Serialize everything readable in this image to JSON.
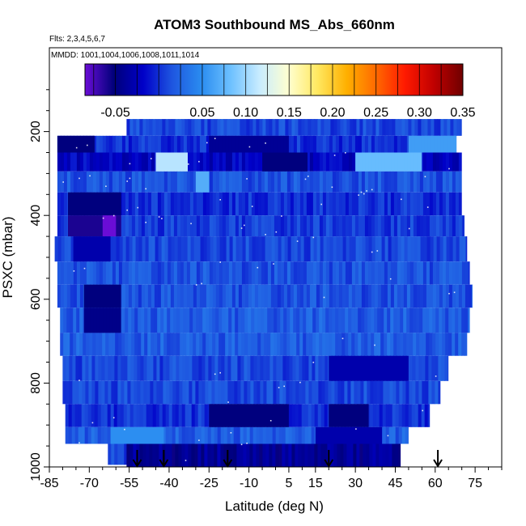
{
  "chart_data": {
    "type": "heatmap",
    "title": "ATOM3 Southbound MS_Abs_660nm",
    "flights_note": "Flts: 2,3,4,5,6,7",
    "dates_note": "MMDD: 1001,1004,1006,1008,1011,1014",
    "xlabel": "Latitude (deg N)",
    "ylabel": "PSXC (mbar)",
    "xlim": [
      -85,
      85
    ],
    "ylim": [
      1000,
      0
    ],
    "x_ticks": [
      -85,
      -70,
      -55,
      -40,
      -25,
      -10,
      5,
      15,
      30,
      45,
      60,
      75
    ],
    "y_ticks": [
      200,
      400,
      600,
      800,
      1000
    ],
    "colorbar": {
      "range": [
        -0.085,
        0.35
      ],
      "ticks": [
        -0.05,
        0.05,
        0.1,
        0.15,
        0.2,
        0.25,
        0.3,
        0.35
      ],
      "tick_labels": [
        "-0.05",
        "0.05",
        "0.10",
        "0.15",
        "0.20",
        "0.25",
        "0.30",
        "0.35"
      ],
      "colors": [
        "#6a0dd6",
        "#00007a",
        "#0000c8",
        "#1e56e0",
        "#2a8cf0",
        "#6cc0ff",
        "#c8ecff",
        "#ffffd0",
        "#ffe860",
        "#ffb000",
        "#ff6a00",
        "#ff1a00",
        "#c00000",
        "#700000"
      ]
    },
    "flight_markers_lat": [
      -52,
      -42,
      -18,
      20,
      61
    ],
    "bands": [
      {
        "p": [
          170,
          210
        ],
        "lat": [
          -56,
          70
        ],
        "value": 0.01
      },
      {
        "p": [
          210,
          250
        ],
        "lat": [
          -82,
          68
        ],
        "value": 0.0
      },
      {
        "p": [
          250,
          295
        ],
        "lat": [
          -82,
          70
        ],
        "value": -0.02
      },
      {
        "p": [
          295,
          345
        ],
        "lat": [
          -82,
          70
        ],
        "value": 0.015
      },
      {
        "p": [
          345,
          400
        ],
        "lat": [
          -82,
          70
        ],
        "value": 0.0
      },
      {
        "p": [
          400,
          450
        ],
        "lat": [
          -82,
          71
        ],
        "value": 0.005
      },
      {
        "p": [
          450,
          510
        ],
        "lat": [
          -83,
          72
        ],
        "value": 0.01
      },
      {
        "p": [
          510,
          565
        ],
        "lat": [
          -82,
          73
        ],
        "value": 0.015
      },
      {
        "p": [
          565,
          620
        ],
        "lat": [
          -82,
          74
        ],
        "value": 0.015
      },
      {
        "p": [
          620,
          680
        ],
        "lat": [
          -81,
          73
        ],
        "value": 0.02
      },
      {
        "p": [
          680,
          735
        ],
        "lat": [
          -81,
          72
        ],
        "value": 0.02
      },
      {
        "p": [
          735,
          795
        ],
        "lat": [
          -80,
          65
        ],
        "value": 0.01
      },
      {
        "p": [
          795,
          850
        ],
        "lat": [
          -80,
          62
        ],
        "value": 0.01
      },
      {
        "p": [
          850,
          905
        ],
        "lat": [
          -79,
          58
        ],
        "value": 0.0
      },
      {
        "p": [
          905,
          945
        ],
        "lat": [
          -79,
          50
        ],
        "value": 0.02
      },
      {
        "p": [
          945,
          995
        ],
        "lat": [
          -63,
          45
        ],
        "value": 0.01
      },
      {
        "p": [
          945,
          1000
        ],
        "lat": [
          -56,
          47
        ],
        "value": -0.04
      }
    ],
    "features": [
      {
        "p": [
          210,
          250
        ],
        "lat": [
          -82,
          -68
        ],
        "value": -0.05
      },
      {
        "p": [
          210,
          250
        ],
        "lat": [
          -25,
          5
        ],
        "value": -0.04
      },
      {
        "p": [
          210,
          250
        ],
        "lat": [
          50,
          68
        ],
        "value": 0.06
      },
      {
        "p": [
          250,
          295
        ],
        "lat": [
          -45,
          -33
        ],
        "value": 0.11
      },
      {
        "p": [
          250,
          295
        ],
        "lat": [
          -5,
          12
        ],
        "value": -0.05
      },
      {
        "p": [
          250,
          295
        ],
        "lat": [
          30,
          55
        ],
        "value": 0.08
      },
      {
        "p": [
          295,
          345
        ],
        "lat": [
          -30,
          -25
        ],
        "value": 0.07
      },
      {
        "p": [
          345,
          400
        ],
        "lat": [
          -78,
          -58
        ],
        "value": -0.05
      },
      {
        "p": [
          400,
          450
        ],
        "lat": [
          -78,
          -58
        ],
        "value": -0.06
      },
      {
        "p": [
          400,
          450
        ],
        "lat": [
          -65,
          -60
        ],
        "value": -0.085
      },
      {
        "p": [
          450,
          510
        ],
        "lat": [
          -76,
          -62
        ],
        "value": -0.03
      },
      {
        "p": [
          565,
          620
        ],
        "lat": [
          -72,
          -58
        ],
        "value": -0.05
      },
      {
        "p": [
          620,
          680
        ],
        "lat": [
          -72,
          -58
        ],
        "value": -0.045
      },
      {
        "p": [
          735,
          795
        ],
        "lat": [
          20,
          50
        ],
        "value": -0.03
      },
      {
        "p": [
          850,
          905
        ],
        "lat": [
          -25,
          5
        ],
        "value": -0.05
      },
      {
        "p": [
          850,
          905
        ],
        "lat": [
          20,
          35
        ],
        "value": -0.05
      },
      {
        "p": [
          905,
          945
        ],
        "lat": [
          -62,
          -42
        ],
        "value": 0.05
      },
      {
        "p": [
          905,
          945
        ],
        "lat": [
          15,
          40
        ],
        "value": -0.03
      }
    ]
  }
}
